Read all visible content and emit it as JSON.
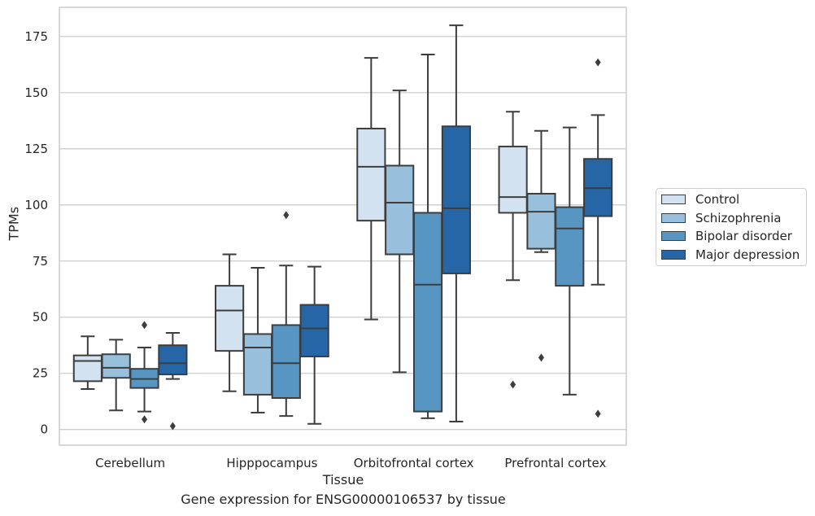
{
  "chart_data": {
    "type": "boxplot",
    "title": "",
    "caption": "Gene expression for ENSG00000106537 by tissue",
    "xlabel": "Tissue",
    "ylabel": "TPMs",
    "ylim": [
      -7,
      188
    ],
    "yticks": [
      0,
      25,
      50,
      75,
      100,
      125,
      150,
      175
    ],
    "grid": "horizontal",
    "legend_position": "right",
    "categories": [
      "Cerebellum",
      "Hipppocampus",
      "Orbitofrontal cortex",
      "Prefrontal cortex"
    ],
    "series": [
      {
        "name": "Control",
        "color": "#d3e2f0",
        "boxes": [
          {
            "whislo": 18,
            "q1": 21.5,
            "med": 30.5,
            "q3": 33,
            "whishi": 41.5,
            "fliers": []
          },
          {
            "whislo": 17,
            "q1": 35,
            "med": 53,
            "q3": 64,
            "whishi": 78,
            "fliers": []
          },
          {
            "whislo": 49,
            "q1": 93,
            "med": 117,
            "q3": 134,
            "whishi": 165.5,
            "fliers": []
          },
          {
            "whislo": 66.5,
            "q1": 96.5,
            "med": 103.5,
            "q3": 126,
            "whishi": 141.5,
            "fliers": [
              20
            ]
          }
        ]
      },
      {
        "name": "Schizophrenia",
        "color": "#98c0dc",
        "boxes": [
          {
            "whislo": 8.5,
            "q1": 23,
            "med": 27.5,
            "q3": 33.5,
            "whishi": 40,
            "fliers": []
          },
          {
            "whislo": 7.5,
            "q1": 15.5,
            "med": 36.5,
            "q3": 42.5,
            "whishi": 72,
            "fliers": []
          },
          {
            "whislo": 25.5,
            "q1": 78,
            "med": 101,
            "q3": 117.5,
            "whishi": 151,
            "fliers": []
          },
          {
            "whislo": 79,
            "q1": 80.5,
            "med": 97,
            "q3": 105,
            "whishi": 133,
            "fliers": [
              32
            ]
          }
        ]
      },
      {
        "name": "Bipolar disorder",
        "color": "#5796c2",
        "boxes": [
          {
            "whislo": 8,
            "q1": 18.5,
            "med": 22.5,
            "q3": 27,
            "whishi": 36.5,
            "fliers": [
              4.5,
              46.5
            ]
          },
          {
            "whislo": 6,
            "q1": 14,
            "med": 29.5,
            "q3": 46.5,
            "whishi": 73,
            "fliers": [
              95.5
            ]
          },
          {
            "whislo": 5,
            "q1": 8,
            "med": 64.5,
            "q3": 96.5,
            "whishi": 167,
            "fliers": []
          },
          {
            "whislo": 15.5,
            "q1": 64,
            "med": 89.5,
            "q3": 99,
            "whishi": 134.5,
            "fliers": []
          }
        ]
      },
      {
        "name": "Major depression",
        "color": "#2766a6",
        "boxes": [
          {
            "whislo": 22.5,
            "q1": 24.5,
            "med": 29.5,
            "q3": 37.5,
            "whishi": 43,
            "fliers": [
              1.5
            ]
          },
          {
            "whislo": 2.5,
            "q1": 32.5,
            "med": 45,
            "q3": 55.5,
            "whishi": 72.5,
            "fliers": []
          },
          {
            "whislo": 3.5,
            "q1": 69.5,
            "med": 98.5,
            "q3": 135,
            "whishi": 180,
            "fliers": []
          },
          {
            "whislo": 64.5,
            "q1": 95,
            "med": 107.5,
            "q3": 120.5,
            "whishi": 140,
            "fliers": [
              7,
              163.5
            ]
          }
        ]
      }
    ]
  }
}
